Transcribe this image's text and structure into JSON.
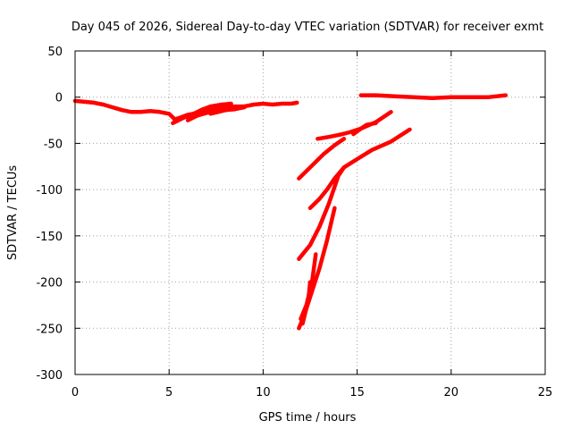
{
  "chart_data": {
    "type": "line",
    "title": "Day 045 of 2026, Sidereal Day-to-day VTEC variation (SDTVAR) for receiver exmt",
    "xlabel": "GPS time / hours",
    "ylabel": "SDTVAR / TECUs",
    "xlim": [
      0,
      25
    ],
    "ylim": [
      -300,
      50
    ],
    "xticks": [
      0,
      5,
      10,
      15,
      20,
      25
    ],
    "yticks": [
      50,
      0,
      -50,
      -100,
      -150,
      -200,
      -250,
      -300
    ],
    "grid": true,
    "legend": "none",
    "color": "#ff0000",
    "series": [
      {
        "points": [
          [
            0.0,
            -4
          ],
          [
            0.5,
            -5
          ],
          [
            1.0,
            -6
          ],
          [
            1.5,
            -8
          ],
          [
            2.0,
            -11
          ],
          [
            2.5,
            -14
          ],
          [
            3.0,
            -16
          ],
          [
            3.5,
            -16
          ],
          [
            4.0,
            -15
          ],
          [
            4.5,
            -16
          ],
          [
            5.0,
            -18
          ],
          [
            5.3,
            -24
          ],
          [
            5.6,
            -22
          ],
          [
            6.0,
            -19
          ],
          [
            6.5,
            -17
          ],
          [
            7.0,
            -14
          ],
          [
            7.5,
            -12
          ],
          [
            8.0,
            -11
          ],
          [
            8.5,
            -10
          ],
          [
            9.0,
            -10
          ],
          [
            9.5,
            -8
          ],
          [
            10.0,
            -7
          ],
          [
            10.5,
            -8
          ],
          [
            11.0,
            -7
          ],
          [
            11.5,
            -7
          ],
          [
            11.8,
            -6
          ]
        ]
      },
      {
        "points": [
          [
            5.2,
            -28
          ],
          [
            5.8,
            -22
          ],
          [
            6.3,
            -18
          ],
          [
            6.8,
            -13
          ],
          [
            7.2,
            -10
          ],
          [
            7.8,
            -8
          ],
          [
            8.3,
            -7
          ]
        ]
      },
      {
        "points": [
          [
            6.0,
            -25
          ],
          [
            6.5,
            -20
          ],
          [
            7.0,
            -17
          ],
          [
            7.5,
            -15
          ],
          [
            8.0,
            -14
          ],
          [
            8.5,
            -13
          ],
          [
            9.0,
            -11
          ]
        ]
      },
      {
        "points": [
          [
            7.2,
            -18
          ],
          [
            7.6,
            -16
          ],
          [
            8.0,
            -14
          ],
          [
            8.5,
            -12
          ],
          [
            9.0,
            -10
          ]
        ]
      },
      {
        "points": [
          [
            11.9,
            -88
          ],
          [
            12.5,
            -76
          ],
          [
            13.2,
            -62
          ],
          [
            13.8,
            -52
          ],
          [
            14.3,
            -45
          ]
        ]
      },
      {
        "points": [
          [
            12.9,
            -45
          ],
          [
            13.5,
            -43
          ],
          [
            14.0,
            -41
          ],
          [
            14.6,
            -38
          ],
          [
            15.2,
            -34
          ],
          [
            16.0,
            -27
          ],
          [
            16.8,
            -16
          ]
        ]
      },
      {
        "points": [
          [
            14.8,
            -40
          ],
          [
            15.2,
            -34
          ],
          [
            15.5,
            -30
          ],
          [
            16.0,
            -28
          ]
        ]
      },
      {
        "points": [
          [
            12.5,
            -120
          ],
          [
            13.0,
            -110
          ],
          [
            13.4,
            -100
          ],
          [
            13.8,
            -88
          ],
          [
            14.3,
            -76
          ],
          [
            15.0,
            -67
          ],
          [
            15.8,
            -57
          ],
          [
            16.8,
            -48
          ],
          [
            17.8,
            -35
          ]
        ]
      },
      {
        "points": [
          [
            11.9,
            -175
          ],
          [
            12.5,
            -160
          ],
          [
            13.0,
            -140
          ],
          [
            13.5,
            -115
          ],
          [
            14.0,
            -85
          ],
          [
            14.3,
            -76
          ]
        ]
      },
      {
        "points": [
          [
            11.9,
            -250
          ],
          [
            12.2,
            -235
          ],
          [
            12.6,
            -210
          ],
          [
            13.0,
            -185
          ],
          [
            13.4,
            -155
          ],
          [
            13.8,
            -120
          ]
        ]
      },
      {
        "points": [
          [
            12.0,
            -240
          ],
          [
            12.3,
            -225
          ],
          [
            12.6,
            -200
          ],
          [
            12.8,
            -170
          ]
        ]
      },
      {
        "points": [
          [
            12.1,
            -245
          ],
          [
            12.4,
            -220
          ],
          [
            12.5,
            -200
          ]
        ]
      },
      {
        "points": [
          [
            15.2,
            2
          ],
          [
            16.0,
            2
          ],
          [
            17.0,
            1
          ],
          [
            18.0,
            0
          ],
          [
            19.0,
            -1
          ],
          [
            20.0,
            0
          ],
          [
            21.0,
            0
          ],
          [
            22.0,
            0
          ],
          [
            22.9,
            2
          ]
        ]
      }
    ]
  }
}
